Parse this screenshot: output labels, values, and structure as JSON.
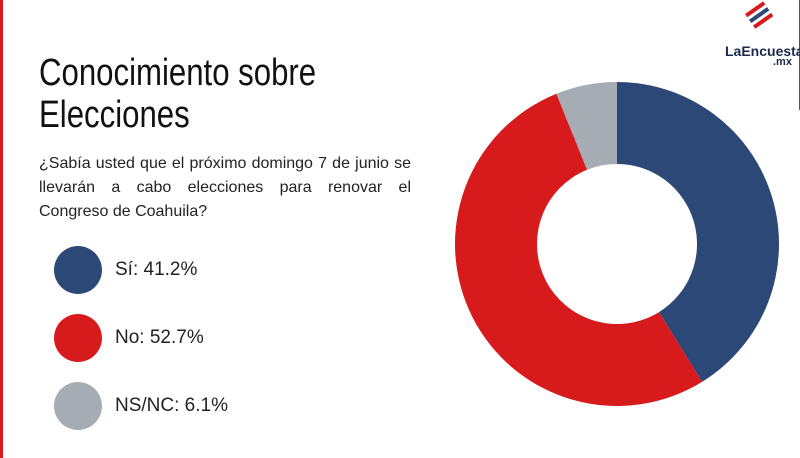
{
  "chart_data": {
    "type": "donut",
    "title": [
      "Conocimiento sobre",
      "Elecciones"
    ],
    "subtitle": "¿Sabía usted que el próximo domingo 7 de junio se llevarán a cabo elecciones para renovar el Congreso de Coahuila?",
    "values": [
      41.2,
      52.7,
      6.1
    ],
    "value_labels": [
      "Sí: 41.2%",
      "No: 52.7%",
      "NS/NC: 6.1%"
    ],
    "colors": [
      "#2c4877",
      "#d71a1c",
      "#a6acb4"
    ]
  },
  "logo": {
    "name": "LaEncuesta",
    "suffix": ".mx"
  }
}
